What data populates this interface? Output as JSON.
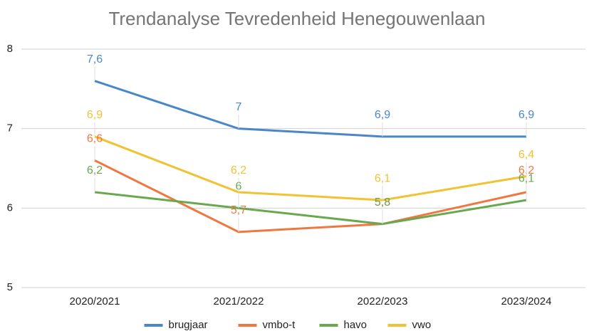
{
  "chart_data": {
    "type": "line",
    "title": "Trendanalyse Tevredenheid Henegouwenlaan",
    "categories": [
      "2020/2021",
      "2021/2022",
      "2022/2023",
      "2023/2024"
    ],
    "series": [
      {
        "name": "brugjaar",
        "color": "#4a86c8",
        "values": [
          7.6,
          7,
          6.9,
          6.9
        ],
        "value_labels": [
          "7,6",
          "7",
          "6,9",
          "6,9"
        ]
      },
      {
        "name": "vmbo-t",
        "color": "#f07840",
        "values": [
          6.6,
          5.7,
          5.8,
          6.2
        ],
        "value_labels": [
          "6,6",
          "5,7",
          "5,8",
          "6,2"
        ]
      },
      {
        "name": "havo",
        "color": "#6aa84f",
        "values": [
          6.2,
          6,
          5.8,
          6.1
        ],
        "value_labels": [
          "6,2",
          "6",
          "5,8",
          "6,1"
        ]
      },
      {
        "name": "vwo",
        "color": "#f1c232",
        "values": [
          6.9,
          6.2,
          6.1,
          6.4
        ],
        "value_labels": [
          "6,9",
          "6,2",
          "6,1",
          "6,4"
        ]
      }
    ],
    "ylim": [
      5,
      8
    ],
    "yticks": [
      5,
      6,
      7,
      8
    ],
    "grid": true,
    "legend": "bottom"
  }
}
